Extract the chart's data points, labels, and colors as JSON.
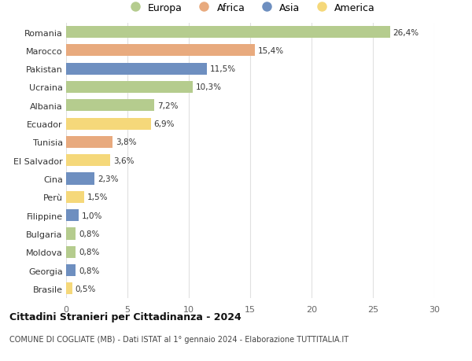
{
  "countries": [
    "Romania",
    "Marocco",
    "Pakistan",
    "Ucraina",
    "Albania",
    "Ecuador",
    "Tunisia",
    "El Salvador",
    "Cina",
    "Perù",
    "Filippine",
    "Bulgaria",
    "Moldova",
    "Georgia",
    "Brasile"
  ],
  "values": [
    26.4,
    15.4,
    11.5,
    10.3,
    7.2,
    6.9,
    3.8,
    3.6,
    2.3,
    1.5,
    1.0,
    0.8,
    0.8,
    0.8,
    0.5
  ],
  "labels": [
    "26,4%",
    "15,4%",
    "11,5%",
    "10,3%",
    "7,2%",
    "6,9%",
    "3,8%",
    "3,6%",
    "2,3%",
    "1,5%",
    "1,0%",
    "0,8%",
    "0,8%",
    "0,8%",
    "0,5%"
  ],
  "continents": [
    "Europa",
    "Africa",
    "Asia",
    "Europa",
    "Europa",
    "America",
    "Africa",
    "America",
    "Asia",
    "America",
    "Asia",
    "Europa",
    "Europa",
    "Asia",
    "America"
  ],
  "colors": {
    "Europa": "#b5cc8e",
    "Africa": "#e8aa7e",
    "Asia": "#6e8fc0",
    "America": "#f5d87a"
  },
  "title": "Cittadini Stranieri per Cittadinanza - 2024",
  "subtitle": "COMUNE DI COGLIATE (MB) - Dati ISTAT al 1° gennaio 2024 - Elaborazione TUTTITALIA.IT",
  "xlim": [
    0,
    30
  ],
  "xticks": [
    0,
    5,
    10,
    15,
    20,
    25,
    30
  ],
  "background_color": "#ffffff",
  "grid_color": "#e0e0e0"
}
